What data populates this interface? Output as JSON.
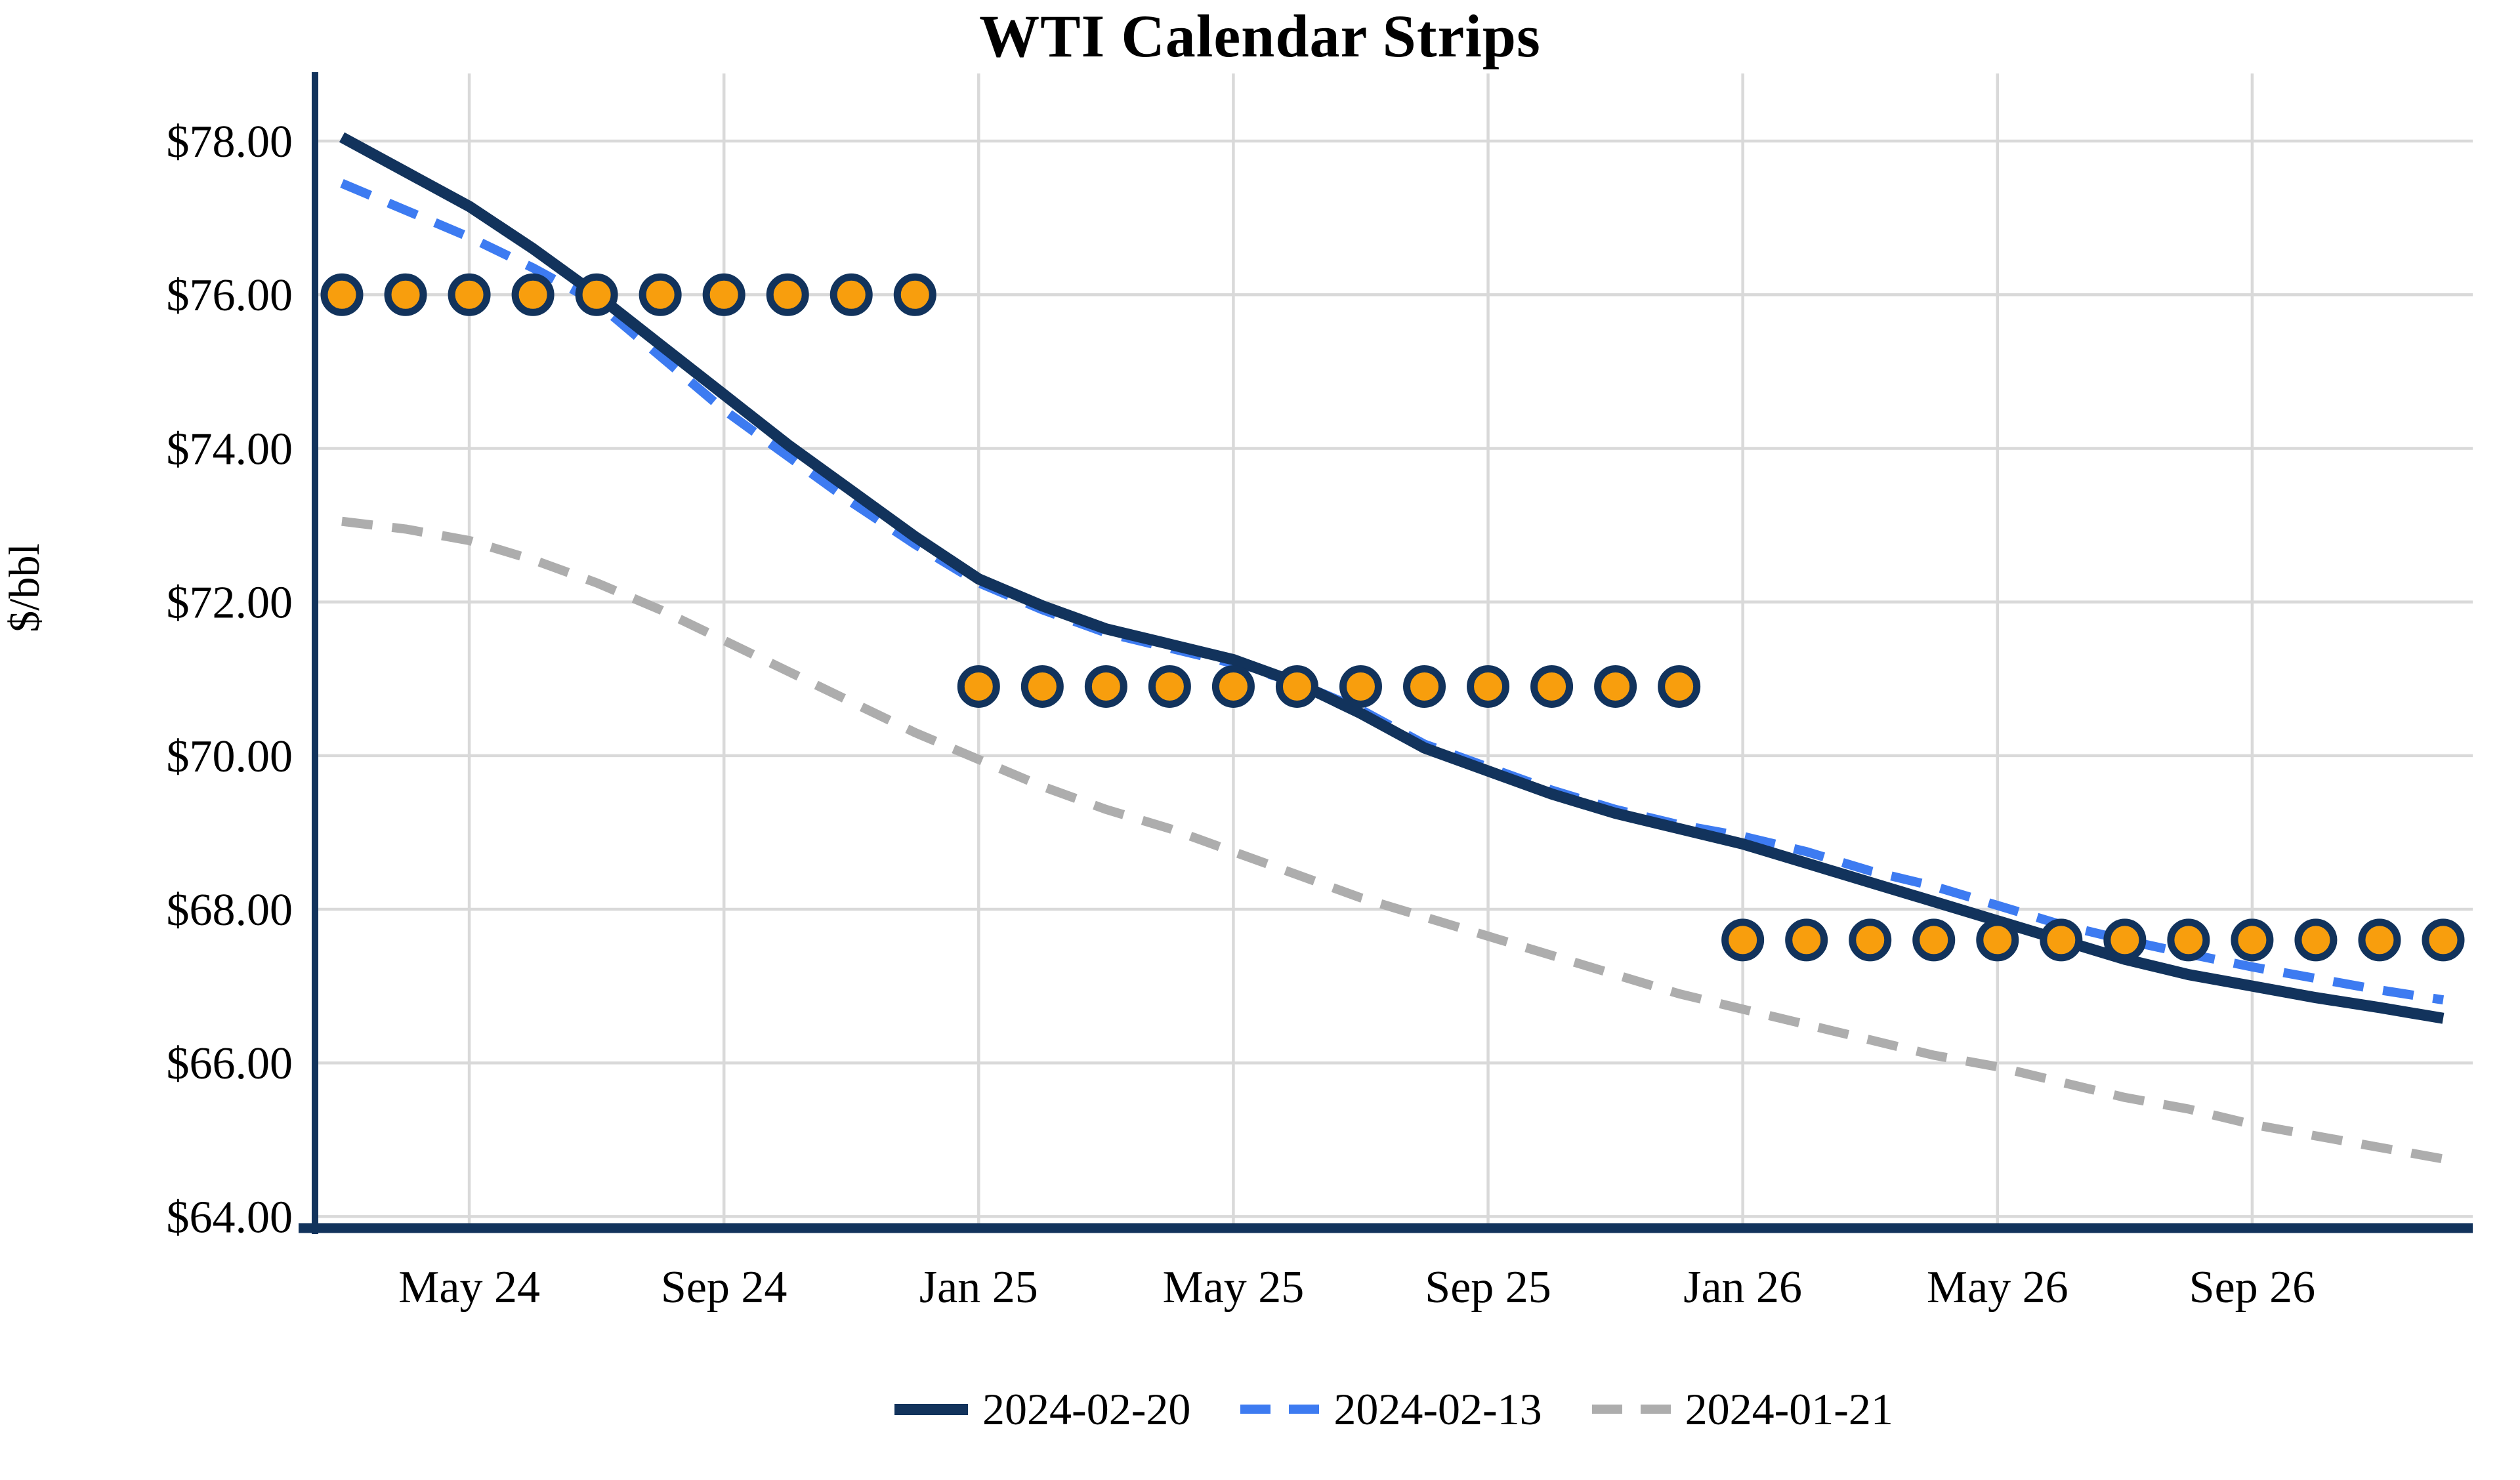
{
  "title": "WTI Calendar Strips",
  "y_axis": {
    "title": "$/bbl",
    "ticks": [
      {
        "label": "$78.00",
        "value": 78
      },
      {
        "label": "$76.00",
        "value": 76
      },
      {
        "label": "$74.00",
        "value": 74
      },
      {
        "label": "$72.00",
        "value": 72
      },
      {
        "label": "$70.00",
        "value": 70
      },
      {
        "label": "$68.00",
        "value": 68
      },
      {
        "label": "$66.00",
        "value": 66
      },
      {
        "label": "$64.00",
        "value": 64
      }
    ],
    "min": 63.85,
    "max": 78.88
  },
  "x_axis": {
    "ticks": [
      {
        "label": "May 24",
        "month_index": 2
      },
      {
        "label": "Sep 24",
        "month_index": 6
      },
      {
        "label": "Jan 25",
        "month_index": 10
      },
      {
        "label": "May 25",
        "month_index": 14
      },
      {
        "label": "Sep 25",
        "month_index": 18
      },
      {
        "label": "Jan 26",
        "month_index": 22
      },
      {
        "label": "May 26",
        "month_index": 26
      },
      {
        "label": "Sep 26",
        "month_index": 30
      }
    ]
  },
  "legend": {
    "items": [
      {
        "label": "2024-02-20",
        "style": "solid",
        "color": "#12335C"
      },
      {
        "label": "2024-02-13",
        "style": "dashed",
        "color": "#3D7BF1"
      },
      {
        "label": "2024-01-21",
        "style": "dashed",
        "color": "#ADADAD"
      }
    ]
  },
  "colors": {
    "navy": "#12335C",
    "blue": "#3D7BF1",
    "gray": "#ADADAD",
    "orange": "#F89E0D",
    "gridline": "#D9D9D9",
    "axis": "#12335C",
    "text": "#000000",
    "background": "#FFFFFF"
  },
  "chart_data": {
    "type": "line",
    "title": "WTI Calendar Strips",
    "ylabel": "$/bbl",
    "ylim": [
      63.85,
      78.88
    ],
    "grid": true,
    "legend_position": "bottom",
    "x_months": [
      "Mar 24",
      "Apr 24",
      "May 24",
      "Jun 24",
      "Jul 24",
      "Aug 24",
      "Sep 24",
      "Oct 24",
      "Nov 24",
      "Dec 24",
      "Jan 25",
      "Feb 25",
      "Mar 25",
      "Apr 25",
      "May 25",
      "Jun 25",
      "Jul 25",
      "Aug 25",
      "Sep 25",
      "Oct 25",
      "Nov 25",
      "Dec 25",
      "Jan 26",
      "Feb 26",
      "Mar 26",
      "Apr 26",
      "May 26",
      "Jun 26",
      "Jul 26",
      "Aug 26",
      "Sep 26",
      "Oct 26",
      "Nov 26",
      "Dec 26"
    ],
    "series": [
      {
        "name": "2024-01-21",
        "color": "#ADADAD",
        "dashed": true,
        "values": [
          73.05,
          72.95,
          72.8,
          72.55,
          72.25,
          71.9,
          71.5,
          71.1,
          70.7,
          70.3,
          69.95,
          69.6,
          69.3,
          69.05,
          68.75,
          68.45,
          68.15,
          67.9,
          67.65,
          67.4,
          67.15,
          66.9,
          66.7,
          66.5,
          66.3,
          66.1,
          65.95,
          65.75,
          65.55,
          65.4,
          65.2,
          65.05,
          64.9,
          64.75
        ]
      },
      {
        "name": "2024-02-13",
        "color": "#3D7BF1",
        "dashed": true,
        "values": [
          77.45,
          77.1,
          76.75,
          76.35,
          75.9,
          75.2,
          74.5,
          73.9,
          73.3,
          72.75,
          72.25,
          71.9,
          71.6,
          71.4,
          71.2,
          70.95,
          70.6,
          70.15,
          69.85,
          69.55,
          69.3,
          69.1,
          68.95,
          68.75,
          68.5,
          68.3,
          68.05,
          67.8,
          67.6,
          67.42,
          67.25,
          67.1,
          66.95,
          66.82
        ]
      },
      {
        "name": "2024-02-20",
        "color": "#12335C",
        "dashed": false,
        "values": [
          78.05,
          77.6,
          77.15,
          76.6,
          76.0,
          75.35,
          74.7,
          74.05,
          73.45,
          72.85,
          72.3,
          71.95,
          71.65,
          71.45,
          71.25,
          70.95,
          70.55,
          70.1,
          69.8,
          69.5,
          69.25,
          69.05,
          68.85,
          68.6,
          68.35,
          68.1,
          67.85,
          67.6,
          67.35,
          67.15,
          67.0,
          66.85,
          66.72,
          66.58
        ]
      }
    ],
    "strip_markers": [
      {
        "value": 76.0,
        "start_month": "Mar 24",
        "end_month": "Dec 24",
        "start_index": 0,
        "end_index": 9,
        "fill": "#F89E0D",
        "ring": "#12335C"
      },
      {
        "value": 70.9,
        "start_month": "Jan 25",
        "end_month": "Dec 25",
        "start_index": 10,
        "end_index": 21,
        "fill": "#F89E0D",
        "ring": "#12335C"
      },
      {
        "value": 67.6,
        "start_month": "Jan 26",
        "end_month": "Dec 26",
        "start_index": 22,
        "end_index": 33,
        "fill": "#F89E0D",
        "ring": "#12335C"
      }
    ]
  }
}
